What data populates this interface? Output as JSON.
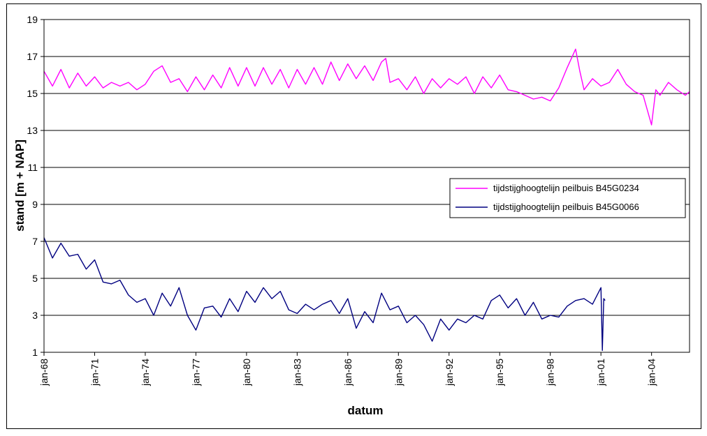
{
  "chart_data": {
    "type": "line",
    "title": "",
    "xlabel": "datum",
    "ylabel": "stand [m + NAP]",
    "ylim": [
      1,
      19
    ],
    "yticks": [
      1,
      3,
      5,
      7,
      9,
      11,
      13,
      15,
      17,
      19
    ],
    "xlim": [
      "1968-01",
      "2006-04"
    ],
    "xticks": [
      {
        "date": "1968-01",
        "label": "jan-68"
      },
      {
        "date": "1971-01",
        "label": "jan-71"
      },
      {
        "date": "1974-01",
        "label": "jan-74"
      },
      {
        "date": "1977-01",
        "label": "jan-77"
      },
      {
        "date": "1980-01",
        "label": "jan-80"
      },
      {
        "date": "1983-01",
        "label": "jan-83"
      },
      {
        "date": "1986-01",
        "label": "jan-86"
      },
      {
        "date": "1989-01",
        "label": "jan-89"
      },
      {
        "date": "1992-01",
        "label": "jan-92"
      },
      {
        "date": "1995-01",
        "label": "jan-95"
      },
      {
        "date": "1998-01",
        "label": "jan-98"
      },
      {
        "date": "2001-01",
        "label": "jan-01"
      },
      {
        "date": "2004-01",
        "label": "jan-04"
      }
    ],
    "grid": "horizontal",
    "legend_position": "right-middle",
    "series": [
      {
        "name": "tijdstijghoogtelijn peilbuis B45G0234",
        "color": "#ff00ff",
        "x": [
          "1968-01",
          "1968-07",
          "1969-01",
          "1969-07",
          "1970-01",
          "1970-07",
          "1971-01",
          "1971-07",
          "1972-01",
          "1972-07",
          "1973-01",
          "1973-07",
          "1974-01",
          "1974-07",
          "1975-01",
          "1975-07",
          "1976-01",
          "1976-07",
          "1977-01",
          "1977-07",
          "1978-01",
          "1978-07",
          "1979-01",
          "1979-07",
          "1980-01",
          "1980-07",
          "1981-01",
          "1981-07",
          "1982-01",
          "1982-07",
          "1983-01",
          "1983-07",
          "1984-01",
          "1984-07",
          "1985-01",
          "1985-07",
          "1986-01",
          "1986-07",
          "1987-01",
          "1987-07",
          "1988-01",
          "1988-04",
          "1988-07",
          "1989-01",
          "1989-07",
          "1990-01",
          "1990-07",
          "1991-01",
          "1991-07",
          "1992-01",
          "1992-07",
          "1993-01",
          "1993-07",
          "1994-01",
          "1994-07",
          "1995-01",
          "1995-07",
          "1996-01",
          "1996-07",
          "1997-01",
          "1997-07",
          "1998-01",
          "1998-07",
          "1999-01",
          "1999-07",
          "1999-10",
          "2000-01",
          "2000-07",
          "2001-01",
          "2001-07",
          "2002-01",
          "2002-07",
          "2003-01",
          "2003-07",
          "2004-01",
          "2004-04",
          "2004-07",
          "2005-01",
          "2005-07",
          "2006-01",
          "2006-04"
        ],
        "values": [
          16.2,
          15.4,
          16.3,
          15.3,
          16.1,
          15.4,
          15.9,
          15.3,
          15.6,
          15.4,
          15.6,
          15.2,
          15.5,
          16.2,
          16.5,
          15.6,
          15.8,
          15.1,
          15.9,
          15.2,
          16.0,
          15.3,
          16.4,
          15.4,
          16.4,
          15.4,
          16.4,
          15.5,
          16.3,
          15.3,
          16.3,
          15.5,
          16.4,
          15.5,
          16.7,
          15.7,
          16.6,
          15.8,
          16.5,
          15.7,
          16.7,
          16.9,
          15.6,
          15.8,
          15.2,
          15.9,
          15.0,
          15.8,
          15.3,
          15.8,
          15.5,
          15.9,
          15.0,
          15.9,
          15.3,
          16.0,
          15.2,
          15.1,
          14.9,
          14.7,
          14.8,
          14.6,
          15.3,
          16.4,
          17.4,
          16.2,
          15.2,
          15.8,
          15.4,
          15.6,
          16.3,
          15.5,
          15.1,
          14.9,
          13.3,
          15.2,
          14.9,
          15.6,
          15.2,
          14.9,
          15.1
        ]
      },
      {
        "name": "tijdstijghoogtelijn peilbuis B45G0066",
        "color": "#000080",
        "x": [
          "1968-01",
          "1968-07",
          "1969-01",
          "1969-07",
          "1970-01",
          "1970-07",
          "1971-01",
          "1971-07",
          "1972-01",
          "1972-07",
          "1973-01",
          "1973-07",
          "1974-01",
          "1974-07",
          "1975-01",
          "1975-07",
          "1976-01",
          "1976-07",
          "1977-01",
          "1977-07",
          "1978-01",
          "1978-07",
          "1979-01",
          "1979-07",
          "1980-01",
          "1980-07",
          "1981-01",
          "1981-07",
          "1982-01",
          "1982-07",
          "1983-01",
          "1983-07",
          "1984-01",
          "1984-07",
          "1985-01",
          "1985-07",
          "1986-01",
          "1986-07",
          "1987-01",
          "1987-07",
          "1988-01",
          "1988-07",
          "1989-01",
          "1989-07",
          "1990-01",
          "1990-07",
          "1991-01",
          "1991-07",
          "1992-01",
          "1992-07",
          "1993-01",
          "1993-07",
          "1994-01",
          "1994-07",
          "1995-01",
          "1995-07",
          "1996-01",
          "1996-07",
          "1997-01",
          "1997-07",
          "1998-01",
          "1998-07",
          "1999-01",
          "1999-07",
          "2000-01",
          "2000-07",
          "2001-01",
          "2001-02",
          "2001-03",
          "2001-04"
        ],
        "values": [
          7.2,
          6.1,
          6.9,
          6.2,
          6.3,
          5.5,
          6.0,
          4.8,
          4.7,
          4.9,
          4.1,
          3.7,
          3.9,
          3.0,
          4.2,
          3.5,
          4.5,
          3.0,
          2.2,
          3.4,
          3.5,
          2.9,
          3.9,
          3.2,
          4.3,
          3.7,
          4.5,
          3.9,
          4.3,
          3.3,
          3.1,
          3.6,
          3.3,
          3.6,
          3.8,
          3.1,
          3.9,
          2.3,
          3.2,
          2.6,
          4.2,
          3.3,
          3.5,
          2.6,
          3.0,
          2.5,
          1.6,
          2.8,
          2.2,
          2.8,
          2.6,
          3.0,
          2.8,
          3.8,
          4.1,
          3.4,
          3.9,
          3.0,
          3.7,
          2.8,
          3.0,
          2.9,
          3.5,
          3.8,
          3.9,
          3.6,
          4.5,
          1.1,
          3.9,
          3.8
        ]
      }
    ]
  }
}
